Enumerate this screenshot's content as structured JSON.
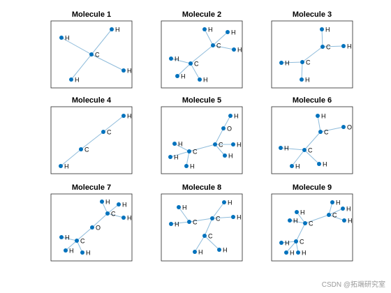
{
  "panels": [
    {
      "title": "Molecule 1",
      "nodes": [
        "C",
        "H",
        "H",
        "H",
        "H"
      ]
    },
    {
      "title": "Molecule 2",
      "nodes": [
        "C",
        "C",
        "H",
        "H",
        "H",
        "H",
        "H",
        "H"
      ]
    },
    {
      "title": "Molecule 3",
      "nodes": [
        "C",
        "C",
        "H",
        "H",
        "H",
        "H"
      ]
    },
    {
      "title": "Molecule 4",
      "nodes": [
        "H",
        "C",
        "C",
        "H"
      ]
    },
    {
      "title": "Molecule 5",
      "nodes": [
        "H",
        "O",
        "C",
        "H",
        "H",
        "C",
        "H",
        "H",
        "H"
      ]
    },
    {
      "title": "Molecule 6",
      "nodes": [
        "C",
        "H",
        "O",
        "C",
        "H",
        "H",
        "H"
      ]
    },
    {
      "title": "Molecule 7",
      "nodes": [
        "H",
        "H",
        "H",
        "C",
        "O",
        "C",
        "H",
        "H",
        "H"
      ]
    },
    {
      "title": "Molecule 8",
      "nodes": [
        "C",
        "H",
        "H",
        "C",
        "H",
        "H",
        "C",
        "H",
        "H"
      ]
    },
    {
      "title": "Molecule 9",
      "nodes": [
        "C",
        "H",
        "H",
        "H",
        "C",
        "H",
        "H",
        "C",
        "H",
        "H",
        "H"
      ]
    }
  ],
  "watermark": "CSDN @拓端研究室"
}
